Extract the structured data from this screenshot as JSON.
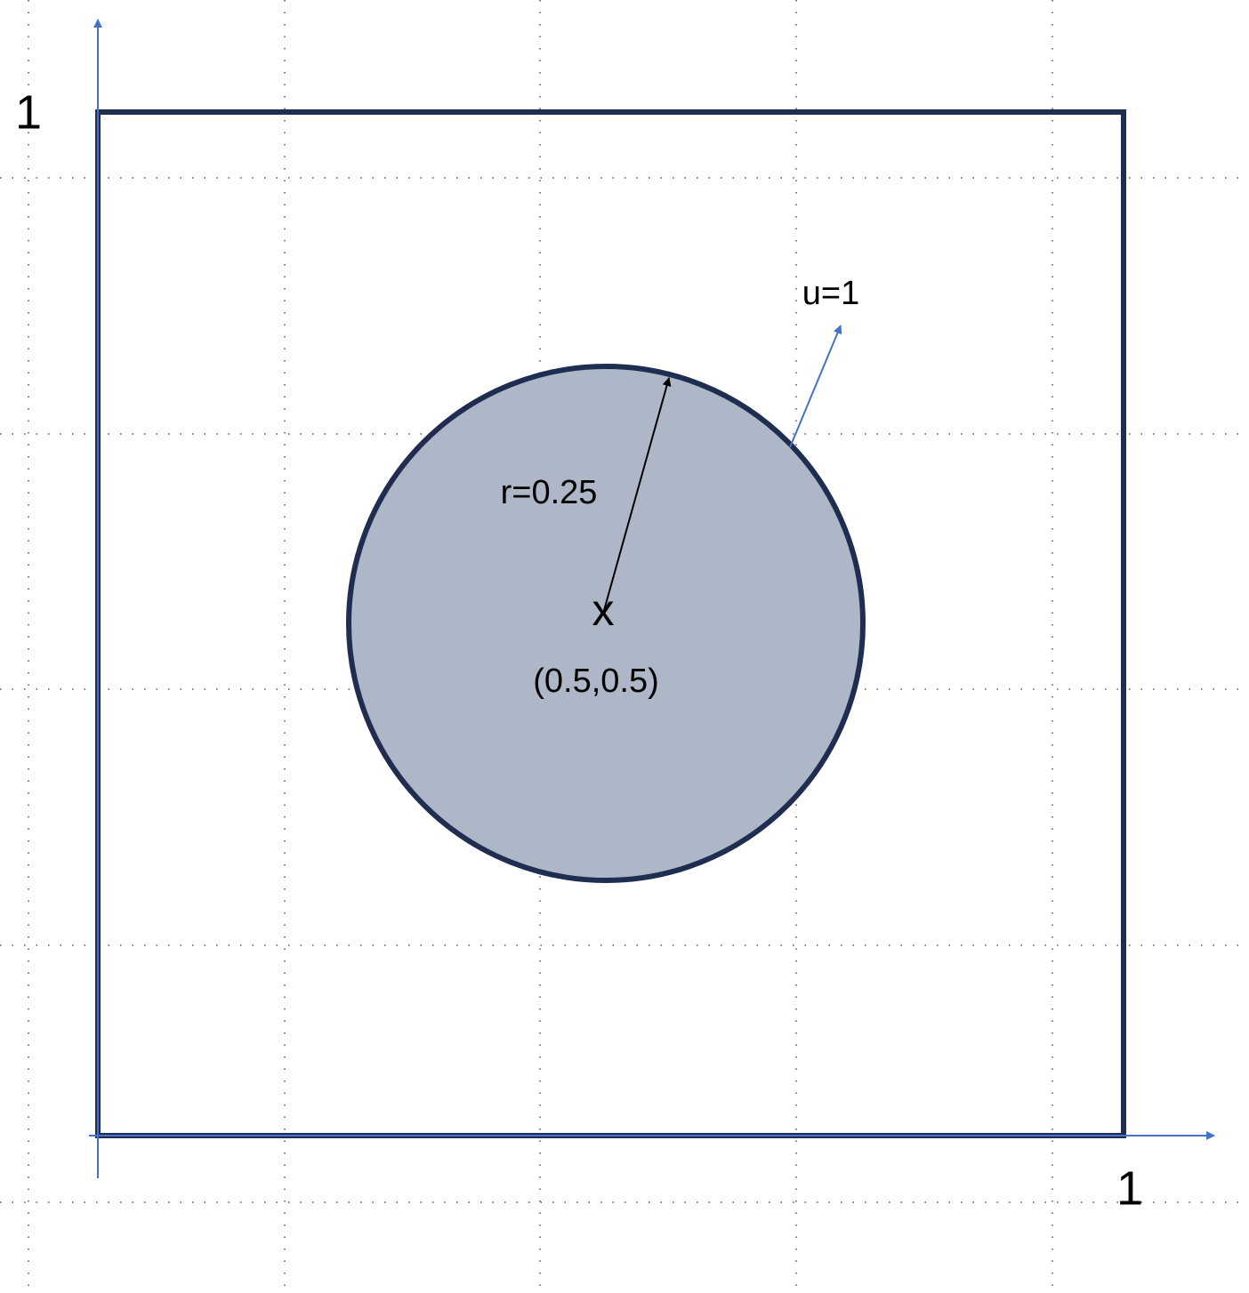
{
  "axes": {
    "y_label": "1",
    "x_label": "1"
  },
  "annotations": {
    "velocity": "u=1",
    "radius": "r=0.25",
    "center_marker": "x",
    "center": "(0.5,0.5)"
  }
}
